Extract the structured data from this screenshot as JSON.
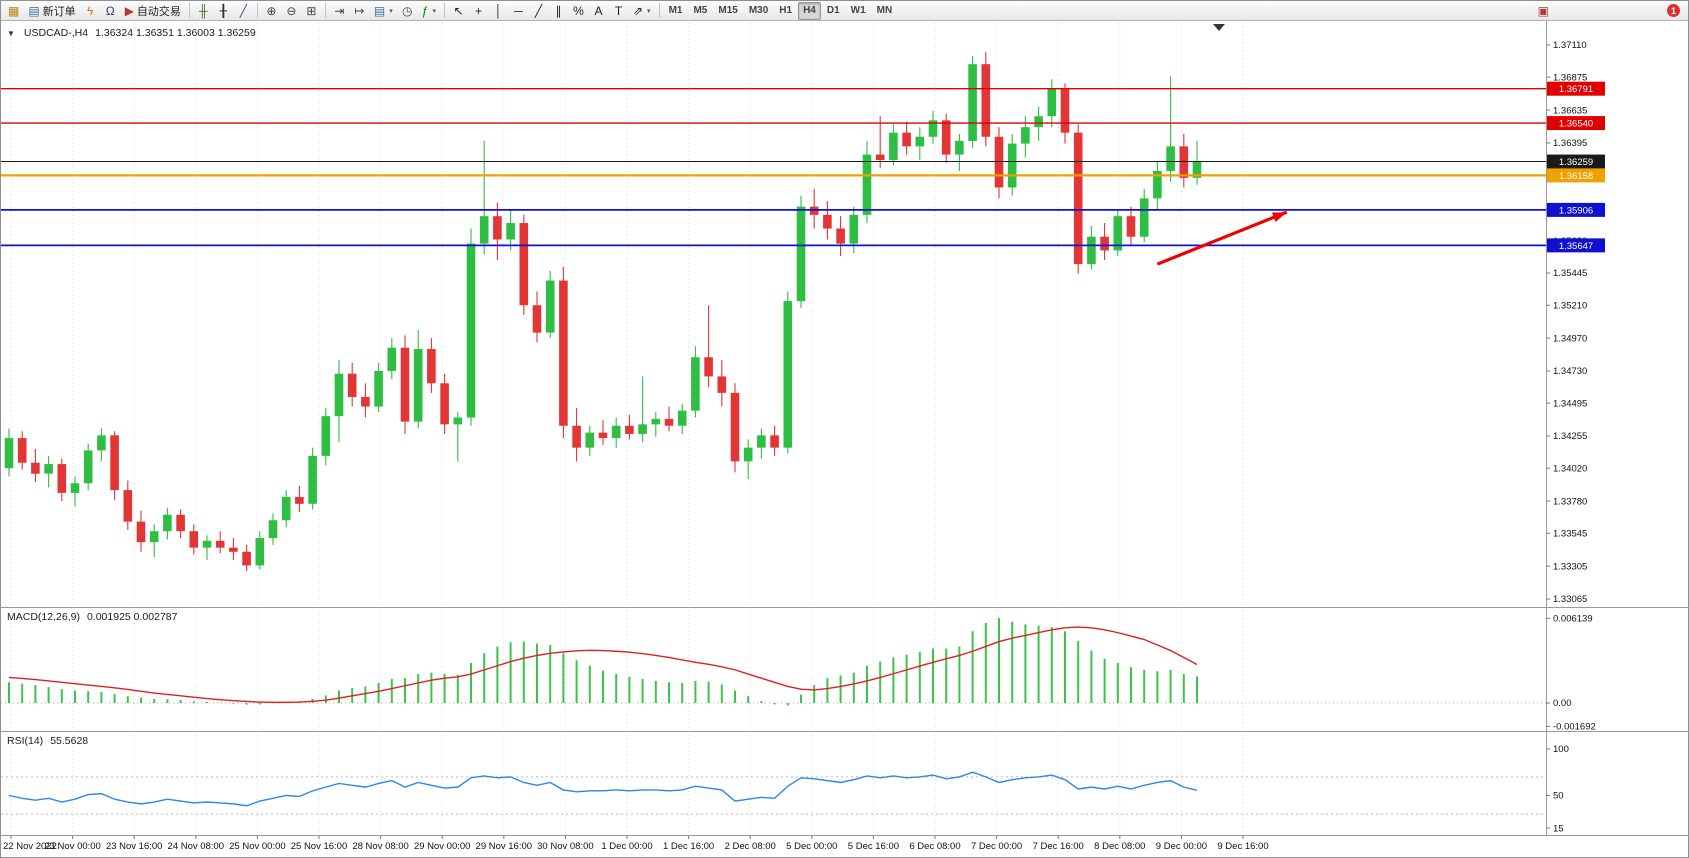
{
  "headers": {
    "symbol": "USDCAD-,H4",
    "ohlc": "1.36324 1.36351 1.36003 1.36259",
    "macd_title": "MACD(12,26,9)",
    "macd_values": "0.001925 0.002787",
    "rsi_title": "RSI(14)",
    "rsi_value": "55.5628"
  },
  "colors": {
    "bull": "#2EBE43",
    "bear": "#E23535",
    "macd_hist": "#3CC34A",
    "macd_signal": "#E02020",
    "rsi": "#2E86E8",
    "grid": "#dcdcdc",
    "axis_text": "#111111",
    "resistance": "#E00000",
    "support": "#1010D0",
    "pivot": "#F0A000"
  },
  "toolbar": {
    "groups": [
      [
        {
          "name": "new-chart",
          "glyph": "▦",
          "color": "#b8860b"
        },
        {
          "name": "new-order",
          "glyph": "▤",
          "color": "#3a6ea5",
          "label": "新订单"
        },
        {
          "name": "expert-advisors",
          "glyph": "ϟ",
          "color": "#c87d0e"
        },
        {
          "name": "market-watch",
          "glyph": "Ω",
          "color": "#333a66"
        },
        {
          "name": "auto-trading",
          "glyph": "▶",
          "color": "#bb3333",
          "label": "自动交易"
        }
      ],
      [
        {
          "name": "bar-chart-mode",
          "glyph": "╫",
          "color": "#4a6a2a"
        },
        {
          "name": "candlestick-mode",
          "glyph": "╂",
          "color": "#333333"
        },
        {
          "name": "line-chart-mode",
          "glyph": "╱",
          "color": "#33518f"
        }
      ],
      [
        {
          "name": "zoom-in",
          "glyph": "⊕",
          "color": "#444444"
        },
        {
          "name": "zoom-out",
          "glyph": "⊖",
          "color": "#444444"
        },
        {
          "name": "tile-windows",
          "glyph": "⊞",
          "color": "#444444"
        }
      ],
      [
        {
          "name": "auto-scroll",
          "glyph": "⇥",
          "color": "#444444"
        },
        {
          "name": "chart-shift",
          "glyph": "↦",
          "color": "#444444"
        },
        {
          "name": "new-order-menu",
          "glyph": "▤",
          "color": "#3a6ea5",
          "caret": true
        },
        {
          "name": "period-clock",
          "glyph": "◷",
          "color": "#444444"
        },
        {
          "name": "indicators-menu",
          "glyph": "ƒ",
          "color": "#0a7a0a",
          "caret": true
        }
      ],
      [
        {
          "name": "cursor-tool",
          "glyph": "↖",
          "color": "#222222"
        },
        {
          "name": "crosshair-tool",
          "glyph": "+",
          "color": "#222222"
        },
        {
          "name": "vertical-line-tool",
          "glyph": "│",
          "color": "#222222"
        },
        {
          "name": "horizontal-line-tool",
          "glyph": "─",
          "color": "#222222"
        },
        {
          "name": "trendline-tool",
          "glyph": "╱",
          "color": "#222222"
        },
        {
          "name": "channel-tool",
          "glyph": "∥",
          "color": "#222222"
        },
        {
          "name": "fibonacci-tool",
          "glyph": "%",
          "color": "#222222"
        },
        {
          "name": "text-tool",
          "glyph": "A",
          "color": "#222222"
        },
        {
          "name": "label-tool",
          "glyph": "T",
          "color": "#222222"
        },
        {
          "name": "shapes-menu",
          "glyph": "⇗",
          "color": "#222222",
          "caret": true
        }
      ]
    ],
    "timeframes": [
      {
        "label": "M1"
      },
      {
        "label": "M5"
      },
      {
        "label": "M15"
      },
      {
        "label": "M30"
      },
      {
        "label": "H1"
      },
      {
        "label": "H4",
        "active": true
      },
      {
        "label": "D1"
      },
      {
        "label": "W1"
      },
      {
        "label": "MN"
      }
    ],
    "right_icons": [
      {
        "name": "news",
        "glyph": "▣",
        "color": "#b03a3a"
      }
    ],
    "badge": "1"
  },
  "chart_data": [
    {
      "type": "candlestick",
      "symbol": "USDCAD-",
      "timeframe": "H4",
      "quote": {
        "open": 1.36324,
        "high": 1.36351,
        "low": 1.36003,
        "close": 1.36259
      },
      "x_labels": [
        "22 Nov 2022",
        "23 Nov 00:00",
        "23 Nov 16:00",
        "24 Nov 08:00",
        "25 Nov 00:00",
        "25 Nov 16:00",
        "28 Nov 08:00",
        "29 Nov 00:00",
        "29 Nov 16:00",
        "30 Nov 08:00",
        "1 Dec 00:00",
        "1 Dec 16:00",
        "2 Dec 08:00",
        "5 Dec 00:00",
        "5 Dec 16:00",
        "6 Dec 08:00",
        "7 Dec 00:00",
        "7 Dec 16:00",
        "8 Dec 08:00",
        "9 Dec 00:00",
        "9 Dec 16:00"
      ],
      "price_ticks": [
        1.3711,
        1.36875,
        1.36635,
        1.36395,
        1.36155,
        1.35915,
        1.3568,
        1.35445,
        1.3521,
        1.3497,
        1.3473,
        1.34495,
        1.34255,
        1.3402,
        1.3378,
        1.33545,
        1.33305,
        1.33065
      ],
      "ohlc": [
        [
          1.3402,
          1.3431,
          1.3396,
          1.3424
        ],
        [
          1.3424,
          1.3429,
          1.3401,
          1.3406
        ],
        [
          1.3406,
          1.3416,
          1.3392,
          1.3398
        ],
        [
          1.3398,
          1.3411,
          1.3388,
          1.3405
        ],
        [
          1.3405,
          1.3409,
          1.3378,
          1.3384
        ],
        [
          1.3384,
          1.3396,
          1.3374,
          1.3391
        ],
        [
          1.3391,
          1.342,
          1.3386,
          1.3415
        ],
        [
          1.3415,
          1.3431,
          1.3407,
          1.3426
        ],
        [
          1.3426,
          1.3429,
          1.3379,
          1.3386
        ],
        [
          1.3386,
          1.3393,
          1.3357,
          1.3363
        ],
        [
          1.3363,
          1.3371,
          1.3341,
          1.3348
        ],
        [
          1.3348,
          1.3361,
          1.3337,
          1.3356
        ],
        [
          1.3356,
          1.3373,
          1.335,
          1.3368
        ],
        [
          1.3368,
          1.3372,
          1.3351,
          1.3356
        ],
        [
          1.3356,
          1.3361,
          1.3339,
          1.3344
        ],
        [
          1.3344,
          1.3353,
          1.3335,
          1.3349
        ],
        [
          1.3349,
          1.3356,
          1.334,
          1.3344
        ],
        [
          1.3344,
          1.3351,
          1.3335,
          1.3341
        ],
        [
          1.3341,
          1.3346,
          1.3327,
          1.3331
        ],
        [
          1.3331,
          1.3356,
          1.3328,
          1.3351
        ],
        [
          1.3351,
          1.3369,
          1.3346,
          1.3364
        ],
        [
          1.3364,
          1.3386,
          1.3359,
          1.3381
        ],
        [
          1.3381,
          1.3389,
          1.337,
          1.3376
        ],
        [
          1.3376,
          1.3417,
          1.3372,
          1.3411
        ],
        [
          1.3411,
          1.3446,
          1.3404,
          1.344
        ],
        [
          1.344,
          1.3481,
          1.3421,
          1.3471
        ],
        [
          1.3471,
          1.3479,
          1.3447,
          1.3454
        ],
        [
          1.3454,
          1.3464,
          1.3439,
          1.3447
        ],
        [
          1.3447,
          1.3479,
          1.3443,
          1.3473
        ],
        [
          1.3473,
          1.3497,
          1.3467,
          1.349
        ],
        [
          1.349,
          1.3499,
          1.3427,
          1.3436
        ],
        [
          1.3436,
          1.3503,
          1.3431,
          1.3489
        ],
        [
          1.3489,
          1.3497,
          1.3457,
          1.3464
        ],
        [
          1.3464,
          1.3471,
          1.3427,
          1.3434
        ],
        [
          1.3434,
          1.3443,
          1.3407,
          1.3439
        ],
        [
          1.3439,
          1.3577,
          1.3433,
          1.3566
        ],
        [
          1.3566,
          1.3641,
          1.3558,
          1.3586
        ],
        [
          1.3586,
          1.3596,
          1.3554,
          1.3569
        ],
        [
          1.3569,
          1.3591,
          1.3561,
          1.3581
        ],
        [
          1.3581,
          1.3587,
          1.3514,
          1.3521
        ],
        [
          1.3521,
          1.3531,
          1.3494,
          1.3501
        ],
        [
          1.3501,
          1.3546,
          1.3497,
          1.3539
        ],
        [
          1.3539,
          1.3549,
          1.3424,
          1.3433
        ],
        [
          1.3433,
          1.3446,
          1.3407,
          1.3417
        ],
        [
          1.3417,
          1.3433,
          1.3411,
          1.3428
        ],
        [
          1.3428,
          1.3437,
          1.3419,
          1.3424
        ],
        [
          1.3424,
          1.3439,
          1.3417,
          1.3433
        ],
        [
          1.3433,
          1.3441,
          1.3423,
          1.3427
        ],
        [
          1.3427,
          1.3469,
          1.3421,
          1.3434
        ],
        [
          1.3434,
          1.3443,
          1.3425,
          1.3438
        ],
        [
          1.3438,
          1.3447,
          1.3429,
          1.3433
        ],
        [
          1.3433,
          1.3449,
          1.3427,
          1.3444
        ],
        [
          1.3444,
          1.3491,
          1.3439,
          1.3483
        ],
        [
          1.3483,
          1.3521,
          1.3461,
          1.3469
        ],
        [
          1.3469,
          1.3481,
          1.3447,
          1.3457
        ],
        [
          1.3457,
          1.3464,
          1.3399,
          1.3407
        ],
        [
          1.3407,
          1.3423,
          1.3394,
          1.3417
        ],
        [
          1.3417,
          1.3431,
          1.3409,
          1.3426
        ],
        [
          1.3426,
          1.3433,
          1.3411,
          1.3417
        ],
        [
          1.3417,
          1.3531,
          1.3413,
          1.3524
        ],
        [
          1.3524,
          1.3601,
          1.3519,
          1.3593
        ],
        [
          1.3593,
          1.3606,
          1.3577,
          1.3587
        ],
        [
          1.3587,
          1.3597,
          1.3569,
          1.3577
        ],
        [
          1.3577,
          1.3586,
          1.3557,
          1.3566
        ],
        [
          1.3566,
          1.3593,
          1.3559,
          1.3587
        ],
        [
          1.3587,
          1.3641,
          1.3581,
          1.3631
        ],
        [
          1.3631,
          1.3659,
          1.3621,
          1.3627
        ],
        [
          1.3627,
          1.3653,
          1.3623,
          1.3647
        ],
        [
          1.3647,
          1.3655,
          1.3631,
          1.3637
        ],
        [
          1.3637,
          1.3651,
          1.3627,
          1.3644
        ],
        [
          1.3644,
          1.3663,
          1.3639,
          1.3656
        ],
        [
          1.3656,
          1.3661,
          1.3625,
          1.3631
        ],
        [
          1.3631,
          1.3646,
          1.3619,
          1.3641
        ],
        [
          1.3641,
          1.3703,
          1.3636,
          1.3697
        ],
        [
          1.3697,
          1.3706,
          1.3637,
          1.3644
        ],
        [
          1.3644,
          1.3651,
          1.3599,
          1.3607
        ],
        [
          1.3607,
          1.3646,
          1.3601,
          1.3639
        ],
        [
          1.3639,
          1.3659,
          1.3629,
          1.3651
        ],
        [
          1.3651,
          1.3666,
          1.3641,
          1.3659
        ],
        [
          1.3659,
          1.3686,
          1.3651,
          1.3679
        ],
        [
          1.3679,
          1.3683,
          1.3639,
          1.3647
        ],
        [
          1.3647,
          1.3653,
          1.3544,
          1.3551
        ],
        [
          1.3551,
          1.3579,
          1.3547,
          1.3571
        ],
        [
          1.3571,
          1.3581,
          1.3554,
          1.3561
        ],
        [
          1.3561,
          1.3591,
          1.3557,
          1.3586
        ],
        [
          1.3586,
          1.3593,
          1.3564,
          1.3571
        ],
        [
          1.3571,
          1.3606,
          1.3567,
          1.3599
        ],
        [
          1.3599,
          1.3626,
          1.3591,
          1.3619
        ],
        [
          1.3619,
          1.3688,
          1.3611,
          1.3637
        ],
        [
          1.3637,
          1.3646,
          1.3607,
          1.3614
        ],
        [
          1.3614,
          1.3641,
          1.3609,
          1.3626
        ]
      ],
      "horizontal_lines": [
        {
          "value": 1.36791,
          "label": "1.36791",
          "color": "#E00000",
          "weight": 1.4,
          "kind": "resistance"
        },
        {
          "value": 1.3654,
          "label": "1.36540",
          "color": "#E00000",
          "weight": 1.4,
          "kind": "resistance"
        },
        {
          "value": 1.36259,
          "label": "1.36259",
          "color": "#1a1a1a",
          "weight": 1,
          "kind": "current-price"
        },
        {
          "value": 1.36158,
          "label": "1.36158",
          "color": "#F0A000",
          "weight": 2.2,
          "kind": "pivot"
        },
        {
          "value": 1.35906,
          "label": "1.35906",
          "color": "#1010D0",
          "weight": 1.8,
          "kind": "support"
        },
        {
          "value": 1.35647,
          "label": "1.35647",
          "color": "#1010D0",
          "weight": 1.8,
          "kind": "support"
        }
      ],
      "arrow": {
        "from_bar": 87,
        "from_price": 1.3551,
        "to_bar": 96.8,
        "to_price": 1.3589,
        "color": "#F00000"
      }
    },
    {
      "type": "macd",
      "name": "MACD(12,26,9)",
      "current_values": [
        0.001925,
        0.002787
      ],
      "axis": [
        {
          "value": 0.006139,
          "label": "0.006139"
        },
        {
          "value": 0,
          "label": "0.00"
        },
        {
          "value": -0.001692,
          "label": "-0.001692"
        }
      ],
      "histogram": [
        0.0015,
        0.0014,
        0.0013,
        0.00115,
        0.001,
        0.0009,
        0.00085,
        0.0008,
        0.00065,
        0.0005,
        0.00038,
        0.0003,
        0.00028,
        0.00022,
        0.00012,
        8e-05,
        2e-05,
        -5e-05,
        -0.00012,
        -0.0001,
        -2e-05,
        8e-05,
        0.00012,
        0.0003,
        0.00055,
        0.0009,
        0.0011,
        0.0012,
        0.00145,
        0.00175,
        0.0018,
        0.0021,
        0.0022,
        0.0021,
        0.00205,
        0.0029,
        0.0036,
        0.0041,
        0.0044,
        0.00445,
        0.0043,
        0.0042,
        0.0036,
        0.0031,
        0.0027,
        0.00235,
        0.0021,
        0.0019,
        0.00175,
        0.0016,
        0.0015,
        0.00145,
        0.0016,
        0.00155,
        0.00135,
        0.0009,
        0.0005,
        0.00015,
        -0.0001,
        -0.00018,
        0.0006,
        0.0013,
        0.0018,
        0.002,
        0.0022,
        0.0027,
        0.003,
        0.0033,
        0.0035,
        0.0037,
        0.00395,
        0.00395,
        0.0041,
        0.0052,
        0.0058,
        0.00615,
        0.0059,
        0.0057,
        0.0056,
        0.0055,
        0.0052,
        0.0045,
        0.0038,
        0.0032,
        0.0029,
        0.0026,
        0.0024,
        0.0023,
        0.0024,
        0.0021,
        0.001925
      ],
      "signal": [
        0.00185,
        0.00178,
        0.0017,
        0.0016,
        0.0015,
        0.0014,
        0.0013,
        0.0012,
        0.0011,
        0.00098,
        0.00085,
        0.00072,
        0.00062,
        0.00052,
        0.00042,
        0.00032,
        0.00024,
        0.00017,
        0.00011,
        7e-05,
        5e-05,
        5e-05,
        7e-05,
        0.00012,
        0.0002,
        0.00035,
        0.00052,
        0.00068,
        0.00085,
        0.00105,
        0.00125,
        0.00145,
        0.00165,
        0.0018,
        0.0019,
        0.0021,
        0.0024,
        0.0027,
        0.003,
        0.00325,
        0.00345,
        0.0036,
        0.0037,
        0.00378,
        0.00382,
        0.0038,
        0.00375,
        0.00368,
        0.00358,
        0.00345,
        0.0033,
        0.00312,
        0.00295,
        0.0028,
        0.00262,
        0.0024,
        0.0021,
        0.0018,
        0.0015,
        0.0012,
        0.001,
        0.00095,
        0.00105,
        0.0012,
        0.00138,
        0.0016,
        0.00185,
        0.00212,
        0.0024,
        0.00268,
        0.00295,
        0.0032,
        0.00345,
        0.00375,
        0.0041,
        0.00445,
        0.0047,
        0.0049,
        0.0051,
        0.0053,
        0.00545,
        0.0055,
        0.00545,
        0.0053,
        0.0051,
        0.00485,
        0.0046,
        0.0042,
        0.0038,
        0.0033,
        0.002787
      ]
    },
    {
      "type": "rsi-line",
      "name": "RSI(14)",
      "current_value": 55.5628,
      "axis": [
        {
          "value": 100,
          "label": "100"
        },
        {
          "value": 50,
          "label": "50"
        },
        {
          "value": 15,
          "label": "15"
        }
      ],
      "levels": [
        70,
        30
      ],
      "values": [
        50,
        47,
        45,
        47,
        43,
        46,
        51,
        52,
        46,
        43,
        41,
        43,
        46,
        44,
        42,
        43,
        42,
        41,
        39,
        44,
        47,
        50,
        49,
        55,
        59,
        63,
        61,
        59,
        63,
        66,
        59,
        64,
        61,
        58,
        59,
        69,
        71,
        69,
        70,
        64,
        61,
        64,
        56,
        54,
        55,
        55,
        56,
        55,
        56,
        56,
        55,
        56,
        60,
        58,
        56,
        44,
        46,
        48,
        47,
        60,
        69,
        68,
        66,
        64,
        67,
        71,
        69,
        71,
        69,
        70,
        72,
        68,
        70,
        75,
        70,
        64,
        67,
        69,
        70,
        72,
        67,
        57,
        59,
        57,
        60,
        57,
        61,
        64,
        66,
        59,
        55.56
      ]
    }
  ]
}
